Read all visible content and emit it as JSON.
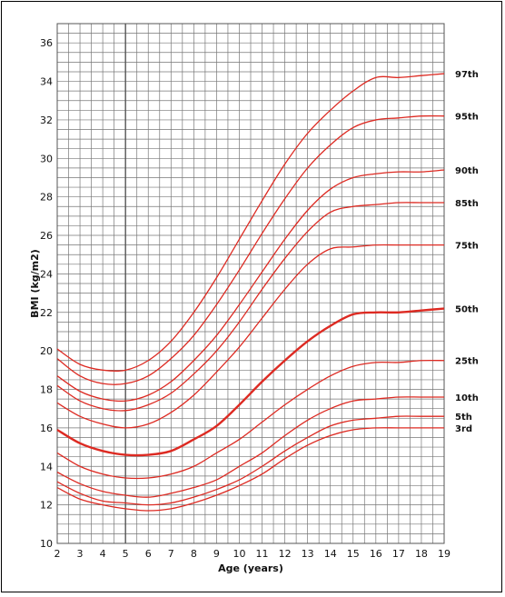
{
  "chart_data": {
    "type": "line",
    "xlabel": "Age (years)",
    "ylabel": "BMI (kg/m2)",
    "xlim": [
      2,
      19
    ],
    "ylim": [
      10,
      37
    ],
    "x_ticks": [
      2,
      3,
      4,
      5,
      6,
      7,
      8,
      9,
      10,
      11,
      12,
      13,
      14,
      15,
      16,
      17,
      18,
      19
    ],
    "y_ticks": [
      10,
      12,
      14,
      16,
      18,
      20,
      22,
      24,
      26,
      28,
      30,
      32,
      34,
      36
    ],
    "grid": true,
    "line_color": "#dd2a22",
    "grid_color": "#777777",
    "x": [
      2,
      3,
      4,
      5,
      6,
      7,
      8,
      9,
      10,
      11,
      12,
      13,
      14,
      15,
      16,
      17,
      18,
      19
    ],
    "series": [
      {
        "name": "97th",
        "values": [
          20.1,
          19.3,
          19.0,
          19.0,
          19.5,
          20.5,
          22.0,
          23.8,
          25.8,
          27.8,
          29.7,
          31.3,
          32.5,
          33.5,
          34.2,
          34.2,
          34.3,
          34.4
        ]
      },
      {
        "name": "95th",
        "values": [
          19.6,
          18.7,
          18.3,
          18.3,
          18.7,
          19.6,
          20.8,
          22.4,
          24.2,
          26.1,
          27.9,
          29.5,
          30.7,
          31.6,
          32.0,
          32.1,
          32.2,
          32.2
        ]
      },
      {
        "name": "90th",
        "values": [
          18.7,
          17.9,
          17.5,
          17.4,
          17.7,
          18.4,
          19.5,
          20.8,
          22.4,
          24.1,
          25.8,
          27.3,
          28.4,
          29.0,
          29.2,
          29.3,
          29.3,
          29.4
        ]
      },
      {
        "name": "85th",
        "values": [
          18.2,
          17.4,
          17.0,
          16.9,
          17.2,
          17.8,
          18.8,
          20.0,
          21.5,
          23.2,
          24.8,
          26.2,
          27.2,
          27.5,
          27.6,
          27.7,
          27.7,
          27.7
        ]
      },
      {
        "name": "75th",
        "values": [
          17.3,
          16.6,
          16.2,
          16.0,
          16.2,
          16.8,
          17.7,
          18.9,
          20.2,
          21.7,
          23.2,
          24.5,
          25.3,
          25.4,
          25.5,
          25.5,
          25.5,
          25.5
        ]
      },
      {
        "name": "50th",
        "values": [
          15.9,
          15.2,
          14.8,
          14.6,
          14.6,
          14.8,
          15.4,
          16.1,
          17.2,
          18.4,
          19.5,
          20.5,
          21.3,
          21.9,
          22.0,
          22.0,
          22.1,
          22.2
        ]
      },
      {
        "name": "25th",
        "values": [
          14.7,
          14.0,
          13.6,
          13.4,
          13.4,
          13.6,
          14.0,
          14.7,
          15.4,
          16.3,
          17.2,
          18.0,
          18.7,
          19.2,
          19.4,
          19.4,
          19.5,
          19.5
        ]
      },
      {
        "name": "10th",
        "values": [
          13.7,
          13.1,
          12.7,
          12.5,
          12.4,
          12.6,
          12.9,
          13.3,
          14.0,
          14.7,
          15.6,
          16.4,
          17.0,
          17.4,
          17.5,
          17.6,
          17.6,
          17.6
        ]
      },
      {
        "name": "5th",
        "values": [
          13.2,
          12.6,
          12.2,
          12.1,
          12.0,
          12.1,
          12.4,
          12.8,
          13.3,
          14.0,
          14.8,
          15.5,
          16.1,
          16.4,
          16.5,
          16.6,
          16.6,
          16.6
        ]
      },
      {
        "name": "3rd",
        "values": [
          12.9,
          12.3,
          12.0,
          11.8,
          11.7,
          11.8,
          12.1,
          12.5,
          13.0,
          13.6,
          14.4,
          15.1,
          15.6,
          15.9,
          16.0,
          16.0,
          16.0,
          16.0
        ]
      }
    ],
    "emphasized_series": "50th"
  }
}
